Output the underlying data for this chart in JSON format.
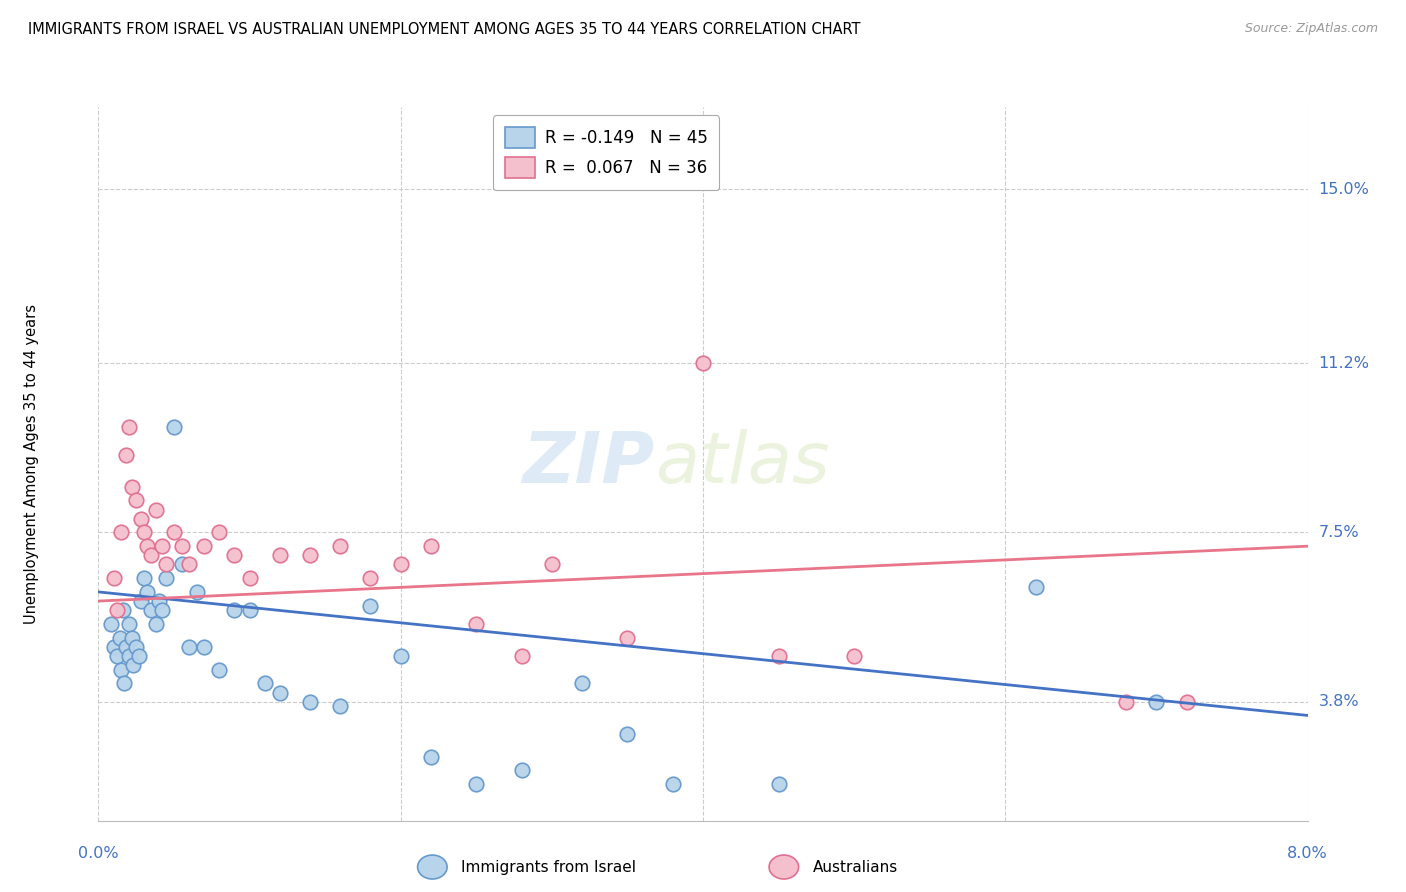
{
  "title": "IMMIGRANTS FROM ISRAEL VS AUSTRALIAN UNEMPLOYMENT AMONG AGES 35 TO 44 YEARS CORRELATION CHART",
  "source": "Source: ZipAtlas.com",
  "ylabel": "Unemployment Among Ages 35 to 44 years",
  "ytick_labels": [
    "15.0%",
    "11.2%",
    "7.5%",
    "3.8%"
  ],
  "ytick_values": [
    15.0,
    11.2,
    7.5,
    3.8
  ],
  "xmin": 0.0,
  "xmax": 8.0,
  "ymin": 1.2,
  "ymax": 16.8,
  "israel_color": "#b8d4ea",
  "israel_edge": "#6699cc",
  "australia_color": "#f5c0ce",
  "australia_edge": "#e07090",
  "israel_line_color": "#4472c4",
  "australia_line_color": "#e8758a",
  "watermark_zip": "ZIP",
  "watermark_atlas": "atlas",
  "israel_points_x": [
    0.08,
    0.1,
    0.12,
    0.14,
    0.15,
    0.16,
    0.17,
    0.18,
    0.2,
    0.2,
    0.22,
    0.23,
    0.25,
    0.27,
    0.28,
    0.3,
    0.32,
    0.35,
    0.38,
    0.4,
    0.42,
    0.45,
    0.5,
    0.55,
    0.6,
    0.65,
    0.7,
    0.8,
    0.9,
    1.0,
    1.1,
    1.2,
    1.4,
    1.6,
    1.8,
    2.0,
    2.2,
    2.5,
    2.8,
    3.2,
    3.5,
    3.8,
    4.5,
    6.2,
    7.0
  ],
  "israel_points_y": [
    5.5,
    5.0,
    4.8,
    5.2,
    4.5,
    5.8,
    4.2,
    5.0,
    5.5,
    4.8,
    5.2,
    4.6,
    5.0,
    4.8,
    6.0,
    6.5,
    6.2,
    5.8,
    5.5,
    6.0,
    5.8,
    6.5,
    9.8,
    6.8,
    5.0,
    6.2,
    5.0,
    4.5,
    5.8,
    5.8,
    4.2,
    4.0,
    3.8,
    3.7,
    5.9,
    4.8,
    2.6,
    2.0,
    2.3,
    4.2,
    3.1,
    2.0,
    2.0,
    6.3,
    3.8
  ],
  "australia_points_x": [
    0.1,
    0.12,
    0.15,
    0.18,
    0.2,
    0.22,
    0.25,
    0.28,
    0.3,
    0.32,
    0.35,
    0.38,
    0.42,
    0.45,
    0.5,
    0.55,
    0.6,
    0.7,
    0.8,
    0.9,
    1.0,
    1.2,
    1.4,
    1.6,
    1.8,
    2.0,
    2.2,
    2.5,
    2.8,
    3.0,
    3.5,
    4.0,
    4.5,
    5.0,
    6.8,
    7.2
  ],
  "australia_points_y": [
    6.5,
    5.8,
    7.5,
    9.2,
    9.8,
    8.5,
    8.2,
    7.8,
    7.5,
    7.2,
    7.0,
    8.0,
    7.2,
    6.8,
    7.5,
    7.2,
    6.8,
    7.2,
    7.5,
    7.0,
    6.5,
    7.0,
    7.0,
    7.2,
    6.5,
    6.8,
    7.2,
    5.5,
    4.8,
    6.8,
    5.2,
    11.2,
    4.8,
    4.8,
    3.8,
    3.8
  ],
  "israel_trend_y_start": 6.2,
  "israel_trend_y_end": 3.5,
  "australia_trend_y_start": 6.0,
  "australia_trend_y_end": 7.2,
  "legend_r1": "R = -0.149",
  "legend_n1": "N = 45",
  "legend_r2": "R =  0.067",
  "legend_n2": "N = 36",
  "legend_label1": "Immigrants from Israel",
  "legend_label2": "Australians"
}
